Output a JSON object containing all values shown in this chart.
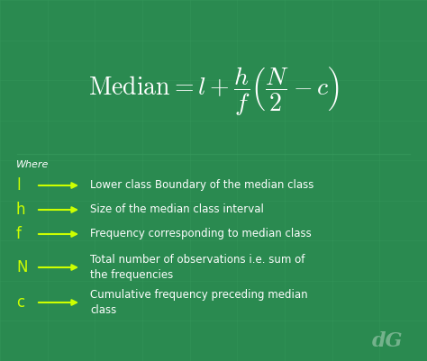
{
  "bg_color": "#2a8a50",
  "text_color": "#ffffff",
  "yellow_color": "#ccff00",
  "formula_latex": "$\\mathrm{Median} = l + \\dfrac{h}{f} \\left( \\dfrac{N}{2} - c \\right)$",
  "where_label": "Where",
  "variables": [
    "l",
    "h",
    "f",
    "N",
    "c"
  ],
  "descriptions": [
    "Lower class Boundary of the median class",
    "Size of the median class interval",
    "Frequency corresponding to median class",
    "Total number of observations i.e. sum of\nthe frequencies",
    "Cumulative frequency preceding median\nclass"
  ],
  "watermark": "dG",
  "fig_width": 4.74,
  "fig_height": 4.01,
  "dpi": 100
}
